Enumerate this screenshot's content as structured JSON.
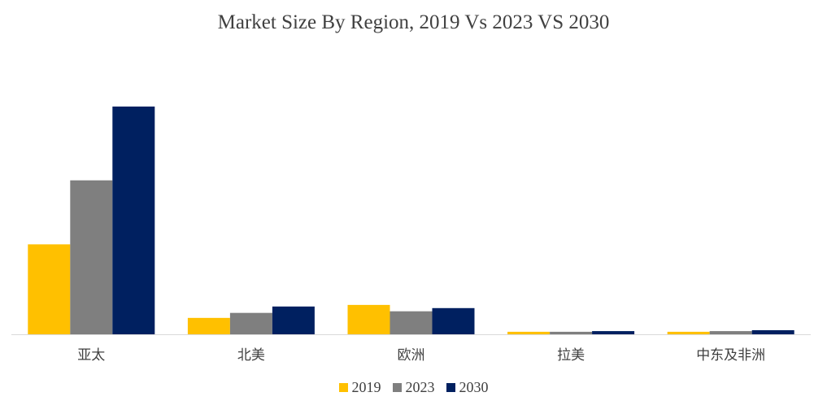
{
  "chart_data": {
    "type": "bar",
    "title": "Market Size By Region, 2019 Vs 2023 VS 2030",
    "xlabel": "",
    "ylabel": "",
    "categories": [
      "亚太",
      "北美",
      "欧洲",
      "拉美",
      "中东及非洲"
    ],
    "series": [
      {
        "name": "2019",
        "color": "#FFC000",
        "values": [
          39.5,
          7.2,
          12.9,
          1.1,
          1.1
        ]
      },
      {
        "name": "2023",
        "color": "#7F7F7F",
        "values": [
          67.6,
          9.4,
          10.1,
          1.1,
          1.4
        ]
      },
      {
        "name": "2030",
        "color": "#002060",
        "values": [
          100,
          12.2,
          11.5,
          1.4,
          1.8
        ]
      }
    ],
    "ylim": [
      0,
      100
    ],
    "grid": false,
    "legend": "bottom"
  }
}
